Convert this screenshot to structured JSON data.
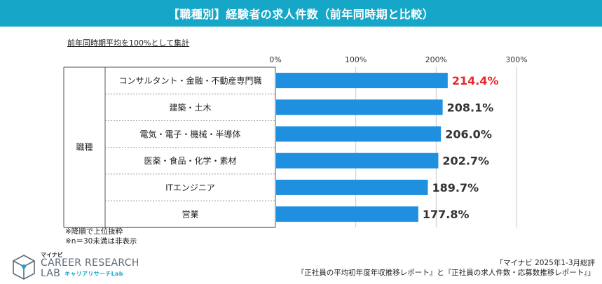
{
  "title": "【職種別】経験者の求人件数（前年同時期と比較）",
  "basis_note": "前年同時期平均を100%として集計",
  "group_label": "職種",
  "colors": {
    "header": "#16a7c8",
    "bar": "#1f8fe0",
    "highlight": "#e8262b",
    "grid": "#c8c8c8"
  },
  "chart_data": {
    "type": "bar",
    "orientation": "horizontal",
    "title": "【職種別】経験者の求人件数（前年同時期と比較）",
    "xlim": [
      0,
      300
    ],
    "ticks": [
      0,
      100,
      200,
      300
    ],
    "tick_labels": [
      "0%",
      "100%",
      "200%",
      "300%"
    ],
    "categories": [
      "コンサルタント・金融・不動産専門職",
      "建築・土木",
      "電気・電子・機械・半導体",
      "医薬・食品・化学・素材",
      "ITエンジニア",
      "営業"
    ],
    "values": [
      214.4,
      208.1,
      206.0,
      202.7,
      189.7,
      177.8
    ],
    "value_labels": [
      "214.4%",
      "208.1%",
      "206.0%",
      "202.7%",
      "189.7%",
      "177.8%"
    ],
    "highlight_index": 0
  },
  "notes": [
    "※降順で上位抜粋",
    "※n＝30未満は非表示"
  ],
  "logo": {
    "sub": "マイナビ",
    "line1": "CAREER RESEARCH",
    "line2": "LAB",
    "jp": "キャリアリサーチLab",
    "icon": "cube-logo-icon"
  },
  "source": [
    "「マイナビ 2025年1-3月総評",
    "『正社員の平均初年度年収推移レポート』と『正社員の求人件数・応募数推移レポート』」"
  ]
}
